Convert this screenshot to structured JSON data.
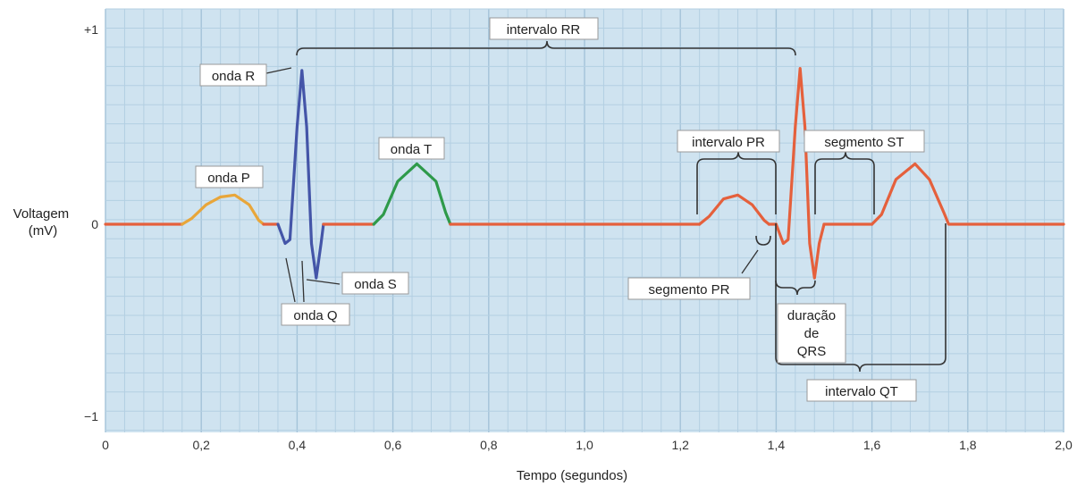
{
  "chart_data": {
    "type": "line",
    "title": "",
    "xlabel": "Tempo (segundos)",
    "ylabel": "Voltagem\n(mV)",
    "xlim": [
      0,
      2.0
    ],
    "ylim": [
      -1,
      1
    ],
    "x_ticks": [
      "0",
      "0,2",
      "0,4",
      "0,6",
      "0,8",
      "1,0",
      "1,2",
      "1,4",
      "1,6",
      "1,8",
      "2,0"
    ],
    "y_ticks": [
      {
        "value": 1,
        "label": "+1"
      },
      {
        "value": 0,
        "label": "0"
      },
      {
        "value": -1,
        "label": "−1"
      }
    ],
    "grid": true,
    "colors": {
      "background": "#cfe3f0",
      "grid_minor": "#b3cfe2",
      "grid_major": "#a4c3d9",
      "baseline": "#e5603c",
      "p_wave": "#e8a63a",
      "qrs": "#4455a8",
      "t_wave": "#2e9a4a",
      "second_beat": "#e5603c"
    },
    "series": [
      {
        "segment": "baseline_start",
        "color_key": "baseline",
        "points": [
          [
            0,
            0
          ],
          [
            0.16,
            0
          ]
        ]
      },
      {
        "segment": "p_wave",
        "color_key": "p_wave",
        "points": [
          [
            0.16,
            0
          ],
          [
            0.18,
            0.03
          ],
          [
            0.21,
            0.1
          ],
          [
            0.24,
            0.14
          ],
          [
            0.27,
            0.15
          ],
          [
            0.3,
            0.1
          ],
          [
            0.32,
            0.02
          ],
          [
            0.33,
            0
          ]
        ]
      },
      {
        "segment": "pr_segment",
        "color_key": "baseline",
        "points": [
          [
            0.33,
            0
          ],
          [
            0.36,
            0
          ]
        ]
      },
      {
        "segment": "qrs",
        "color_key": "qrs",
        "points": [
          [
            0.36,
            0
          ],
          [
            0.375,
            -0.1
          ],
          [
            0.385,
            -0.08
          ],
          [
            0.4,
            0.5
          ],
          [
            0.41,
            0.79
          ],
          [
            0.42,
            0.5
          ],
          [
            0.43,
            -0.1
          ],
          [
            0.44,
            -0.28
          ],
          [
            0.45,
            -0.1
          ],
          [
            0.455,
            0
          ]
        ]
      },
      {
        "segment": "st_segment",
        "color_key": "baseline",
        "points": [
          [
            0.455,
            0
          ],
          [
            0.56,
            0
          ]
        ]
      },
      {
        "segment": "t_wave",
        "color_key": "t_wave",
        "points": [
          [
            0.56,
            0
          ],
          [
            0.58,
            0.05
          ],
          [
            0.61,
            0.22
          ],
          [
            0.65,
            0.31
          ],
          [
            0.69,
            0.22
          ],
          [
            0.71,
            0.06
          ],
          [
            0.72,
            0
          ]
        ]
      },
      {
        "segment": "tp_segment",
        "color_key": "baseline",
        "points": [
          [
            0.72,
            0
          ],
          [
            1.24,
            0
          ]
        ]
      },
      {
        "segment": "p_wave_2",
        "color_key": "second_beat",
        "points": [
          [
            1.24,
            0
          ],
          [
            1.26,
            0.04
          ],
          [
            1.29,
            0.13
          ],
          [
            1.32,
            0.15
          ],
          [
            1.35,
            0.1
          ],
          [
            1.375,
            0.02
          ],
          [
            1.385,
            0
          ]
        ]
      },
      {
        "segment": "pr_segment_2",
        "color_key": "second_beat",
        "points": [
          [
            1.385,
            0
          ],
          [
            1.4,
            0
          ]
        ]
      },
      {
        "segment": "qrs_2",
        "color_key": "second_beat",
        "points": [
          [
            1.4,
            0
          ],
          [
            1.415,
            -0.1
          ],
          [
            1.425,
            -0.08
          ],
          [
            1.44,
            0.5
          ],
          [
            1.45,
            0.8
          ],
          [
            1.46,
            0.5
          ],
          [
            1.47,
            -0.1
          ],
          [
            1.48,
            -0.28
          ],
          [
            1.49,
            -0.1
          ],
          [
            1.5,
            0
          ]
        ]
      },
      {
        "segment": "st_segment_2",
        "color_key": "second_beat",
        "points": [
          [
            1.5,
            0
          ],
          [
            1.6,
            0
          ]
        ]
      },
      {
        "segment": "t_wave_2",
        "color_key": "second_beat",
        "points": [
          [
            1.6,
            0
          ],
          [
            1.62,
            0.05
          ],
          [
            1.65,
            0.23
          ],
          [
            1.69,
            0.31
          ],
          [
            1.72,
            0.23
          ],
          [
            1.75,
            0.06
          ],
          [
            1.76,
            0
          ],
          [
            2.0,
            0
          ]
        ]
      }
    ],
    "annotations": {
      "onda_p": "onda P",
      "onda_r": "onda R",
      "onda_q": "onda Q",
      "onda_s": "onda S",
      "onda_t": "onda T",
      "intervalo_rr": "intervalo RR",
      "intervalo_pr": "intervalo PR",
      "segmento_st": "segmento ST",
      "segmento_pr": "segmento PR",
      "duracao_qrs": [
        "duração",
        "de",
        "QRS"
      ],
      "intervalo_qt": "intervalo QT"
    }
  }
}
